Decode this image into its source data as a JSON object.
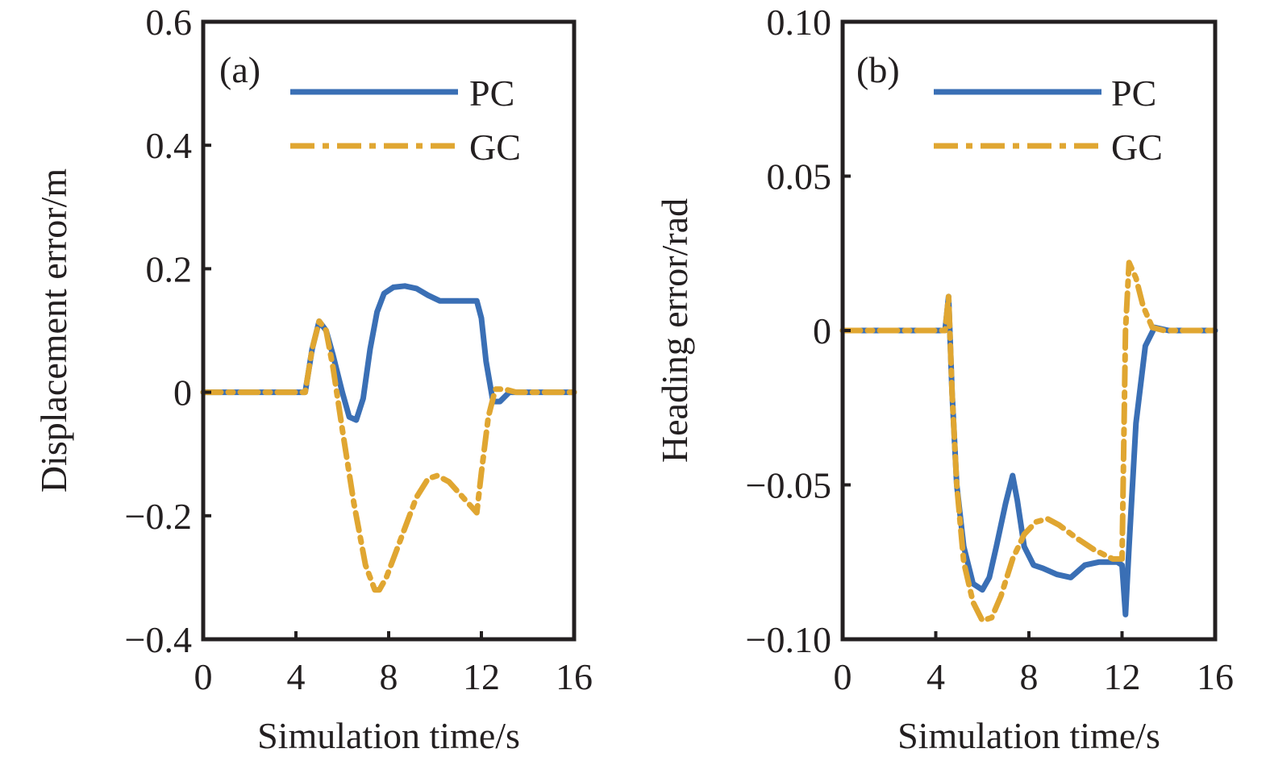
{
  "chart_data": [
    {
      "type": "line",
      "panel_label": "(a)",
      "xlabel": "Simulation time/s",
      "ylabel": "Displacement error/m",
      "xlim": [
        0,
        16
      ],
      "ylim": [
        -0.4,
        0.6
      ],
      "x_ticks": [
        0,
        4,
        8,
        12,
        16
      ],
      "x_tick_labels": [
        "0",
        "4",
        "8",
        "12",
        "16"
      ],
      "y_ticks": [
        -0.4,
        -0.2,
        0,
        0.2,
        0.4,
        0.6
      ],
      "y_tick_labels": [
        "−0.4",
        "−0.2",
        "0",
        "0.2",
        "0.4",
        "0.6"
      ],
      "legend_position": "top-right",
      "series": [
        {
          "name": "PC",
          "color": "#3a6fb5",
          "style": "solid",
          "x": [
            0,
            4.4,
            4.7,
            5.0,
            5.3,
            5.6,
            6.0,
            6.3,
            6.6,
            6.9,
            7.2,
            7.5,
            7.8,
            8.2,
            8.7,
            9.2,
            9.7,
            10.2,
            11.0,
            11.8,
            12.0,
            12.2,
            12.5,
            12.8,
            13.2,
            14,
            16
          ],
          "y": [
            0,
            0,
            0.07,
            0.115,
            0.1,
            0.06,
            0.0,
            -0.04,
            -0.045,
            -0.01,
            0.07,
            0.13,
            0.16,
            0.17,
            0.172,
            0.168,
            0.157,
            0.148,
            0.148,
            0.148,
            0.12,
            0.05,
            -0.015,
            -0.015,
            0.0,
            0.0,
            0.0
          ]
        },
        {
          "name": "GC",
          "color": "#e0a631",
          "style": "dashdot",
          "x": [
            0,
            4.4,
            4.7,
            5.0,
            5.3,
            5.6,
            6.0,
            6.5,
            7.0,
            7.4,
            7.6,
            7.9,
            8.3,
            8.7,
            9.2,
            9.7,
            10.1,
            10.6,
            11.2,
            11.8,
            12.0,
            12.3,
            12.6,
            13.0,
            13.5,
            14,
            16
          ],
          "y": [
            0,
            0,
            0.07,
            0.115,
            0.1,
            0.04,
            -0.06,
            -0.18,
            -0.28,
            -0.32,
            -0.32,
            -0.3,
            -0.26,
            -0.22,
            -0.17,
            -0.14,
            -0.135,
            -0.145,
            -0.17,
            -0.195,
            -0.13,
            -0.04,
            0.005,
            0.005,
            0.0,
            0.0,
            0.0
          ]
        }
      ]
    },
    {
      "type": "line",
      "panel_label": "(b)",
      "xlabel": "Simulation time/s",
      "ylabel": "Heading error/rad",
      "xlim": [
        0,
        16
      ],
      "ylim": [
        -0.1,
        0.1
      ],
      "x_ticks": [
        0,
        4,
        8,
        12,
        16
      ],
      "x_tick_labels": [
        "0",
        "4",
        "8",
        "12",
        "16"
      ],
      "y_ticks": [
        -0.1,
        -0.05,
        0,
        0.05,
        0.1
      ],
      "y_tick_labels": [
        "−0.10",
        "−0.05",
        "0",
        "0.05",
        "0.10"
      ],
      "legend_position": "top-right",
      "series": [
        {
          "name": "PC",
          "color": "#3a6fb5",
          "style": "solid",
          "x": [
            0,
            4.4,
            4.55,
            4.7,
            4.9,
            5.2,
            5.6,
            6.0,
            6.3,
            6.6,
            7.0,
            7.3,
            7.5,
            7.8,
            8.2,
            8.6,
            9.2,
            9.8,
            10.4,
            11.0,
            11.8,
            12.0,
            12.15,
            12.3,
            12.6,
            13.0,
            13.4,
            14,
            16
          ],
          "y": [
            0,
            0,
            0.011,
            -0.02,
            -0.05,
            -0.07,
            -0.082,
            -0.084,
            -0.08,
            -0.07,
            -0.056,
            -0.047,
            -0.055,
            -0.07,
            -0.076,
            -0.077,
            -0.079,
            -0.08,
            -0.076,
            -0.075,
            -0.075,
            -0.076,
            -0.092,
            -0.07,
            -0.03,
            -0.005,
            0.001,
            0.0,
            0.0
          ]
        },
        {
          "name": "GC",
          "color": "#e0a631",
          "style": "dashdot",
          "x": [
            0,
            4.4,
            4.55,
            4.7,
            4.9,
            5.2,
            5.6,
            6.0,
            6.4,
            6.8,
            7.3,
            7.8,
            8.3,
            8.8,
            9.3,
            10.0,
            10.8,
            11.6,
            12.0,
            12.15,
            12.3,
            12.6,
            12.9,
            13.3,
            13.8,
            14,
            16
          ],
          "y": [
            0,
            0,
            0.011,
            -0.02,
            -0.05,
            -0.075,
            -0.088,
            -0.094,
            -0.093,
            -0.086,
            -0.074,
            -0.066,
            -0.062,
            -0.061,
            -0.063,
            -0.067,
            -0.071,
            -0.074,
            -0.074,
            0.0,
            0.022,
            0.017,
            0.008,
            0.001,
            0.0,
            0.0,
            0.0
          ]
        }
      ]
    }
  ]
}
